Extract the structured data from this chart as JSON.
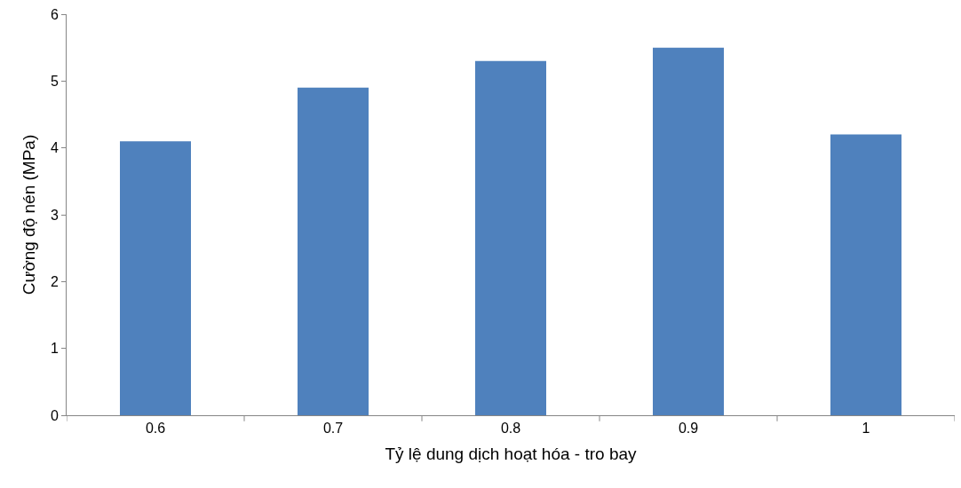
{
  "chart_data": {
    "type": "bar",
    "xlabel": "Tỷ lệ dung dịch hoạt hóa - tro bay",
    "ylabel": "Cường độ nén (MPa)",
    "categories": [
      "0.6",
      "0.7",
      "0.8",
      "0.9",
      "1"
    ],
    "values": [
      4.1,
      4.9,
      5.3,
      5.5,
      4.2
    ],
    "color": "#4f81bd",
    "ylim": [
      0,
      6
    ],
    "yticks": [
      0,
      1,
      2,
      3,
      4,
      5,
      6
    ],
    "grid": false,
    "legend": false
  }
}
